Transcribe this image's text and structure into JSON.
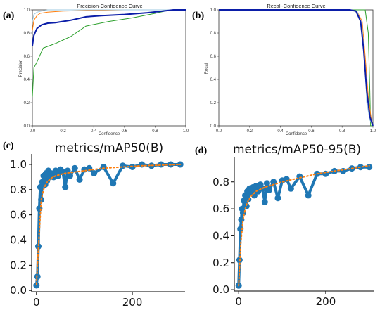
{
  "panels": [
    {
      "letter": "(a)"
    },
    {
      "letter": "(b)"
    },
    {
      "letter": "(c)"
    },
    {
      "letter": "(d)"
    }
  ],
  "chart_data": [
    {
      "type": "line",
      "title": "Precision-Confidence Curve",
      "xlabel": "Confidence",
      "ylabel": "Precision",
      "xlim": [
        0,
        1
      ],
      "ylim": [
        0,
        1
      ],
      "xticks": [
        "0.0",
        "0.2",
        "0.4",
        "0.6",
        "0.8",
        "1.0"
      ],
      "yticks": [
        "0.0",
        "0.2",
        "0.4",
        "0.6",
        "0.8",
        "1.0"
      ],
      "series": [
        {
          "color": "#2ca02c",
          "x": [
            0,
            0.01,
            0.03,
            0.07,
            0.15,
            0.25,
            0.35,
            0.5,
            0.65,
            0.8,
            0.9,
            1.0
          ],
          "y": [
            0.25,
            0.5,
            0.55,
            0.67,
            0.71,
            0.77,
            0.86,
            0.9,
            0.93,
            0.97,
            1.0,
            1.0
          ]
        },
        {
          "color": "#ff7f0e",
          "x": [
            0,
            0.01,
            0.03,
            0.05,
            0.1,
            0.2,
            0.4,
            0.6,
            0.8,
            1.0
          ],
          "y": [
            0.82,
            0.91,
            0.95,
            0.97,
            0.98,
            0.99,
            0.995,
            1.0,
            1.0,
            1.0
          ]
        },
        {
          "color": "#9ecae1",
          "x": [
            0,
            0.01,
            0.03,
            0.06,
            0.1,
            0.2,
            0.5,
            1.0
          ],
          "y": [
            0.9,
            0.96,
            0.98,
            0.99,
            1.0,
            1.0,
            1.0,
            1.0
          ]
        },
        {
          "color": "#0b1ea8",
          "x": [
            0,
            0.01,
            0.03,
            0.06,
            0.1,
            0.15,
            0.25,
            0.35,
            0.45,
            0.6,
            0.75,
            0.85,
            0.92,
            1.0
          ],
          "y": [
            0.69,
            0.78,
            0.84,
            0.87,
            0.885,
            0.89,
            0.91,
            0.94,
            0.95,
            0.96,
            0.975,
            0.99,
            1.0,
            1.0
          ]
        }
      ]
    },
    {
      "type": "line",
      "title": "Recall-Confidence Curve",
      "xlabel": "Confidence",
      "ylabel": "Recall",
      "xlim": [
        0,
        1
      ],
      "ylim": [
        0,
        1
      ],
      "xticks": [
        "0.0",
        "0.2",
        "0.4",
        "0.6",
        "0.8",
        "1.0"
      ],
      "yticks": [
        "0.0",
        "0.2",
        "0.4",
        "0.6",
        "0.8",
        "1.0"
      ],
      "series": [
        {
          "color": "#2ca02c",
          "x": [
            0,
            0.5,
            0.9,
            0.95,
            0.97,
            0.98,
            0.985,
            1.0
          ],
          "y": [
            1.0,
            1.0,
            1.0,
            1.0,
            0.8,
            0.3,
            0.0,
            0.0
          ]
        },
        {
          "color": "#ff7f0e",
          "x": [
            0,
            0.5,
            0.85,
            0.9,
            0.93,
            0.95,
            0.97,
            0.99,
            1.0
          ],
          "y": [
            1.0,
            1.0,
            1.0,
            0.98,
            0.9,
            0.6,
            0.25,
            0.05,
            0.0
          ]
        },
        {
          "color": "#9ecae1",
          "x": [
            0,
            0.5,
            0.85,
            0.9,
            0.93,
            0.95,
            0.96,
            0.98,
            1.0
          ],
          "y": [
            1.0,
            1.0,
            1.0,
            0.98,
            0.85,
            0.5,
            0.2,
            0.05,
            0.0
          ]
        },
        {
          "color": "#0b1ea8",
          "x": [
            0,
            0.5,
            0.85,
            0.89,
            0.92,
            0.94,
            0.96,
            0.98,
            1.0
          ],
          "y": [
            1.0,
            1.0,
            1.0,
            0.99,
            0.9,
            0.65,
            0.3,
            0.08,
            0.0
          ]
        }
      ]
    },
    {
      "type": "scatter",
      "title": "metrics/mAP50(B)",
      "xlim": [
        -10,
        310
      ],
      "ylim": [
        -0.01,
        1.05
      ],
      "xticks": [
        "0",
        "200"
      ],
      "yticks": [
        "0.0",
        "0.2",
        "0.4",
        "0.6",
        "0.8",
        "1.0"
      ],
      "series": [
        {
          "color": "#1f77b4",
          "x": [
            0,
            2,
            4,
            6,
            8,
            10,
            12,
            15,
            18,
            20,
            22,
            25,
            28,
            30,
            33,
            36,
            40,
            45,
            50,
            55,
            60,
            65,
            70,
            80,
            90,
            100,
            110,
            120,
            140,
            160,
            180,
            200,
            220,
            240,
            260,
            280,
            300
          ],
          "y": [
            0.04,
            0.11,
            0.35,
            0.65,
            0.82,
            0.72,
            0.86,
            0.91,
            0.84,
            0.93,
            0.87,
            0.95,
            0.9,
            0.93,
            0.92,
            0.9,
            0.95,
            0.91,
            0.96,
            0.94,
            0.82,
            0.95,
            0.91,
            0.97,
            0.88,
            0.96,
            0.97,
            0.93,
            0.98,
            0.85,
            0.99,
            0.98,
            1.0,
            0.99,
            1.0,
            1.0,
            1.0
          ]
        },
        {
          "color": "#ff7f0e",
          "x": [
            0,
            5,
            10,
            15,
            20,
            30,
            40,
            60,
            80,
            100,
            140,
            180,
            220,
            260,
            300
          ],
          "y": [
            0.05,
            0.4,
            0.72,
            0.8,
            0.85,
            0.89,
            0.91,
            0.93,
            0.94,
            0.95,
            0.97,
            0.98,
            0.99,
            0.995,
            1.0
          ]
        }
      ]
    },
    {
      "type": "scatter",
      "title": "metrics/mAP50-95(B)",
      "xlim": [
        -10,
        310
      ],
      "ylim": [
        -0.01,
        0.95
      ],
      "xticks": [
        "0",
        "200"
      ],
      "yticks": [
        "0.0",
        "0.2",
        "0.4",
        "0.6",
        "0.8"
      ],
      "series": [
        {
          "color": "#1f77b4",
          "x": [
            0,
            2,
            4,
            6,
            8,
            10,
            12,
            15,
            18,
            20,
            22,
            25,
            28,
            30,
            33,
            36,
            40,
            45,
            50,
            55,
            60,
            65,
            70,
            80,
            90,
            100,
            110,
            120,
            140,
            160,
            180,
            200,
            220,
            240,
            260,
            280,
            300
          ],
          "y": [
            0.03,
            0.22,
            0.45,
            0.52,
            0.6,
            0.57,
            0.66,
            0.7,
            0.62,
            0.73,
            0.67,
            0.75,
            0.72,
            0.74,
            0.76,
            0.7,
            0.77,
            0.73,
            0.78,
            0.75,
            0.65,
            0.79,
            0.74,
            0.8,
            0.68,
            0.81,
            0.82,
            0.75,
            0.84,
            0.7,
            0.86,
            0.86,
            0.88,
            0.88,
            0.9,
            0.91,
            0.91
          ]
        },
        {
          "color": "#ff7f0e",
          "x": [
            0,
            5,
            10,
            15,
            20,
            30,
            40,
            60,
            80,
            100,
            140,
            180,
            220,
            260,
            300
          ],
          "y": [
            0.03,
            0.35,
            0.52,
            0.6,
            0.65,
            0.7,
            0.73,
            0.76,
            0.78,
            0.8,
            0.83,
            0.86,
            0.88,
            0.9,
            0.92
          ]
        }
      ]
    }
  ]
}
